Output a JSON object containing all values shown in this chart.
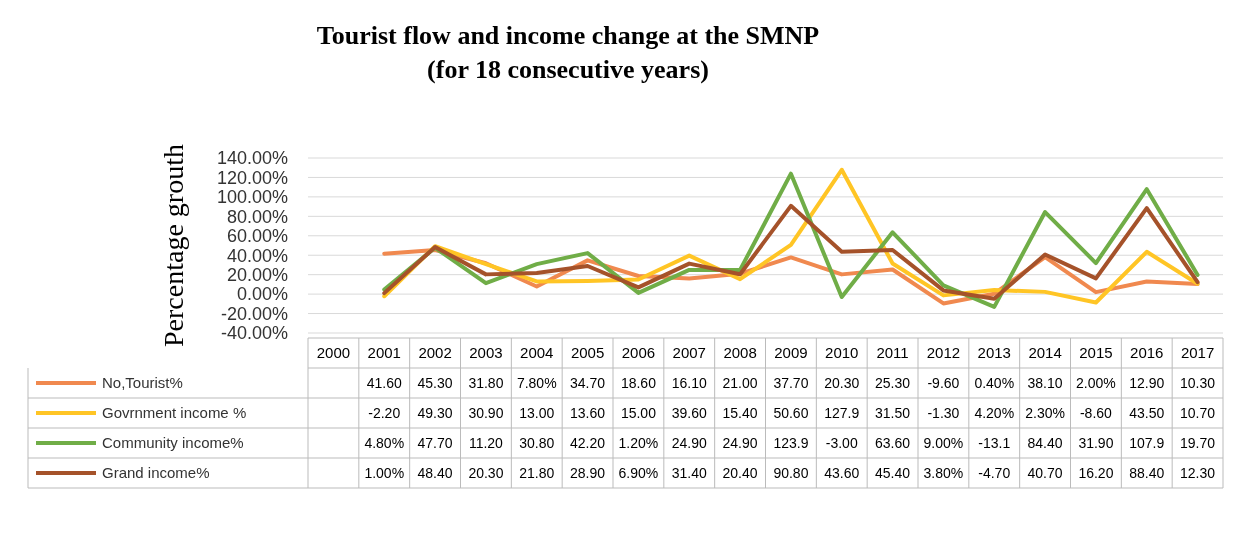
{
  "chart_data": {
    "type": "line",
    "title": "Tourist flow and income change at the SMNP",
    "subtitle": "(for 18 consecutive years)",
    "ylabel": "Percentage grouth",
    "categories": [
      "2000",
      "2001",
      "2002",
      "2003",
      "2004",
      "2005",
      "2006",
      "2007",
      "2008",
      "2009",
      "2010",
      "2011",
      "2012",
      "2013",
      "2014",
      "2015",
      "2016",
      "2017"
    ],
    "series": [
      {
        "name": "No,Tourist%",
        "color": "#f0894f",
        "values": [
          null,
          41.6,
          45.3,
          31.8,
          7.8,
          34.7,
          18.6,
          16.1,
          21.0,
          37.7,
          20.3,
          25.3,
          -9.6,
          0.4,
          38.1,
          2.0,
          12.9,
          10.3
        ],
        "value_labels": [
          null,
          "41.60",
          "45.30",
          "31.80",
          "7.80%",
          "34.70",
          "18.60",
          "16.10",
          "21.00",
          "37.70",
          "20.30",
          "25.30",
          "-9.60",
          "0.40%",
          "38.10",
          "2.00%",
          "12.90",
          "10.30"
        ]
      },
      {
        "name": "Govrnment income %",
        "color": "#ffc525",
        "values": [
          null,
          -2.2,
          49.3,
          30.9,
          13.0,
          13.6,
          15.0,
          39.6,
          15.4,
          50.6,
          127.9,
          31.5,
          -1.3,
          4.2,
          2.3,
          -8.6,
          43.5,
          10.7
        ],
        "value_labels": [
          null,
          "-2.20",
          "49.30",
          "30.90",
          "13.00",
          "13.60",
          "15.00",
          "39.60",
          "15.40",
          "50.60",
          "127.9",
          "31.50",
          "-1.30",
          "4.20%",
          "2.30%",
          "-8.60",
          "43.50",
          "10.70"
        ]
      },
      {
        "name": "Community income%",
        "color": "#70ad47",
        "values": [
          null,
          4.8,
          47.7,
          11.2,
          30.8,
          42.2,
          1.2,
          24.9,
          24.9,
          123.9,
          -3.0,
          63.6,
          9.0,
          -13.1,
          84.4,
          31.9,
          107.9,
          19.7
        ],
        "value_labels": [
          null,
          "4.80%",
          "47.70",
          "11.20",
          "30.80",
          "42.20",
          "1.20%",
          "24.90",
          "24.90",
          "123.9",
          "-3.00",
          "63.60",
          "9.00%",
          "-13.1",
          "84.40",
          "31.90",
          "107.9",
          "19.70"
        ]
      },
      {
        "name": "Grand income%",
        "color": "#a5522a",
        "values": [
          null,
          1.0,
          48.4,
          20.3,
          21.8,
          28.9,
          6.9,
          31.4,
          20.4,
          90.8,
          43.6,
          45.4,
          3.8,
          -4.7,
          40.7,
          16.2,
          88.4,
          12.3
        ],
        "value_labels": [
          null,
          "1.00%",
          "48.40",
          "20.30",
          "21.80",
          "28.90",
          "6.90%",
          "31.40",
          "20.40",
          "90.80",
          "43.60",
          "45.40",
          "3.80%",
          "-4.70",
          "40.70",
          "16.20",
          "88.40",
          "12.30"
        ]
      }
    ],
    "ylim": [
      -40,
      140
    ],
    "yticks": [
      {
        "value": -40,
        "label": "-40.00%"
      },
      {
        "value": -20,
        "label": "-20.00%"
      },
      {
        "value": 0,
        "label": "0.00%"
      },
      {
        "value": 20,
        "label": "20.00%"
      },
      {
        "value": 40,
        "label": "40.00%"
      },
      {
        "value": 60,
        "label": "60.00%"
      },
      {
        "value": 80,
        "label": "80.00%"
      },
      {
        "value": 100,
        "label": "100.00%"
      },
      {
        "value": 120,
        "label": "120.00%"
      },
      {
        "value": 140,
        "label": "140.00%"
      }
    ],
    "grid": "y",
    "legend": "bottom",
    "line_style": "solid",
    "marker": "none"
  }
}
